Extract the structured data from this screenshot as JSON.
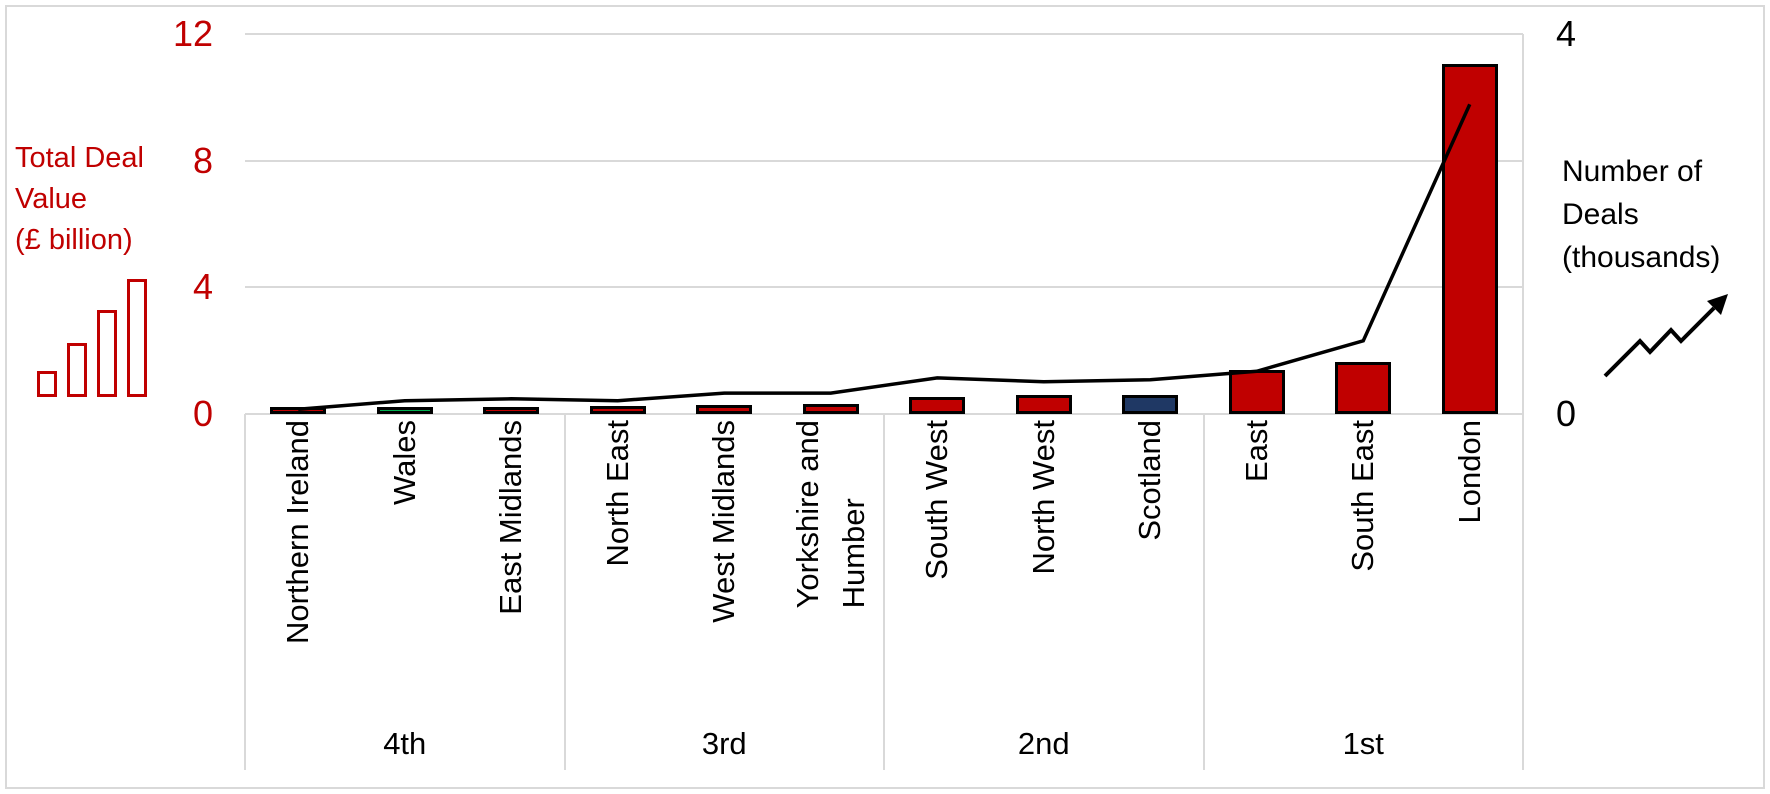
{
  "figure": {
    "background": "#FFFFFF",
    "border_color": "#D9D9D9"
  },
  "left_axis": {
    "title_lines": [
      "Total Deal",
      "Value",
      "(£ billion)"
    ],
    "color": "#C00000",
    "ticks": [
      0,
      4,
      8,
      12
    ],
    "icon": "ascending-bars-icon"
  },
  "right_axis": {
    "title_lines": [
      "Number of",
      "Deals",
      "(thousands)"
    ],
    "color": "#000000",
    "ticks": [
      0,
      4
    ],
    "icon": "zigzag-up-arrow-icon"
  },
  "chart_data": {
    "type": "combo bar+line",
    "title": "",
    "categories": [
      "Northern Ireland",
      "Wales",
      "East Midlands",
      "North East",
      "West Midlands",
      "Yorkshire and\nHumber",
      "South West",
      "North West",
      "Scotland",
      "East",
      "South East",
      "London"
    ],
    "category_groups": [
      {
        "label": "4th",
        "span": 3
      },
      {
        "label": "3rd",
        "span": 3
      },
      {
        "label": "2nd",
        "span": 3
      },
      {
        "label": "1st",
        "span": 3
      }
    ],
    "series": [
      {
        "name": "Total Deal Value (£ billion)",
        "type": "bar",
        "axis": "left",
        "values": [
          0.15,
          0.17,
          0.22,
          0.25,
          0.28,
          0.32,
          0.54,
          0.6,
          0.6,
          1.4,
          1.65,
          11.05
        ],
        "bar_colors": [
          "#C00000",
          "#00B050",
          "#C00000",
          "#C00000",
          "#C00000",
          "#C00000",
          "#C00000",
          "#C00000",
          "#1F3864",
          "#C00000",
          "#C00000",
          "#C00000"
        ],
        "bar_border_color": "#000000"
      },
      {
        "name": "Number of Deals (thousands)",
        "type": "line",
        "axis": "right",
        "values": [
          0.05,
          0.14,
          0.16,
          0.14,
          0.22,
          0.22,
          0.38,
          0.34,
          0.36,
          0.45,
          0.77,
          3.26
        ],
        "color": "#000000"
      }
    ],
    "left_ylim": [
      0,
      12
    ],
    "right_ylim": [
      0,
      4
    ],
    "grid": "horizontal",
    "gridline_color": "#D9D9D9",
    "legend_position": "none"
  }
}
